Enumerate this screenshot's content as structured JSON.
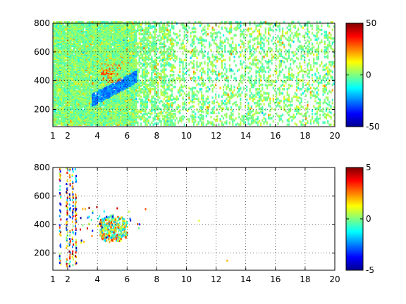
{
  "chart_data": [
    {
      "type": "heatmap",
      "title": "",
      "xlabel": "",
      "ylabel": "",
      "xlim": [
        1,
        20
      ],
      "ylim": [
        80,
        800
      ],
      "x_ticks": [
        1,
        2,
        4,
        6,
        8,
        10,
        12,
        14,
        16,
        18,
        20
      ],
      "x_tick_labels": [
        "1",
        "2",
        "4",
        "6",
        "8",
        "10",
        "12",
        "14",
        "16",
        "18",
        "20"
      ],
      "y_ticks": [
        200,
        400,
        600,
        800
      ],
      "y_tick_labels": [
        "200",
        "400",
        "600",
        "800"
      ],
      "grid": true,
      "colormap": "jet",
      "clim": [
        -50,
        50
      ],
      "colorbar_ticks": [
        50,
        0,
        -50
      ],
      "colorbar_tick_labels": [
        "50",
        "0",
        "-50"
      ],
      "values_summary": "dense scattered field across the full domain, values mostly near 0 with small positive/negative variations; diagonal band of negative values around x≈4–6, y≈280–380"
    },
    {
      "type": "heatmap",
      "title": "",
      "xlabel": "",
      "ylabel": "",
      "xlim": [
        1,
        20
      ],
      "ylim": [
        80,
        800
      ],
      "x_ticks": [
        1,
        2,
        4,
        6,
        8,
        10,
        12,
        14,
        16,
        18,
        20
      ],
      "x_tick_labels": [
        "1",
        "2",
        "4",
        "6",
        "8",
        "10",
        "12",
        "14",
        "16",
        "18",
        "20"
      ],
      "y_ticks": [
        200,
        400,
        600,
        800
      ],
      "y_tick_labels": [
        "200",
        "400",
        "600",
        "800"
      ],
      "grid": true,
      "colormap": "jet",
      "clim": [
        -5,
        5
      ],
      "colorbar_ticks": [
        5,
        0,
        -5
      ],
      "colorbar_tick_labels": [
        "5",
        "0",
        "-5"
      ],
      "values_summary": "sparse values: vertical streaks near x≈1.5–2.5 spanning y≈100–780, a cluster near x≈4–6, y≈280–450, isolated points elsewhere"
    }
  ]
}
